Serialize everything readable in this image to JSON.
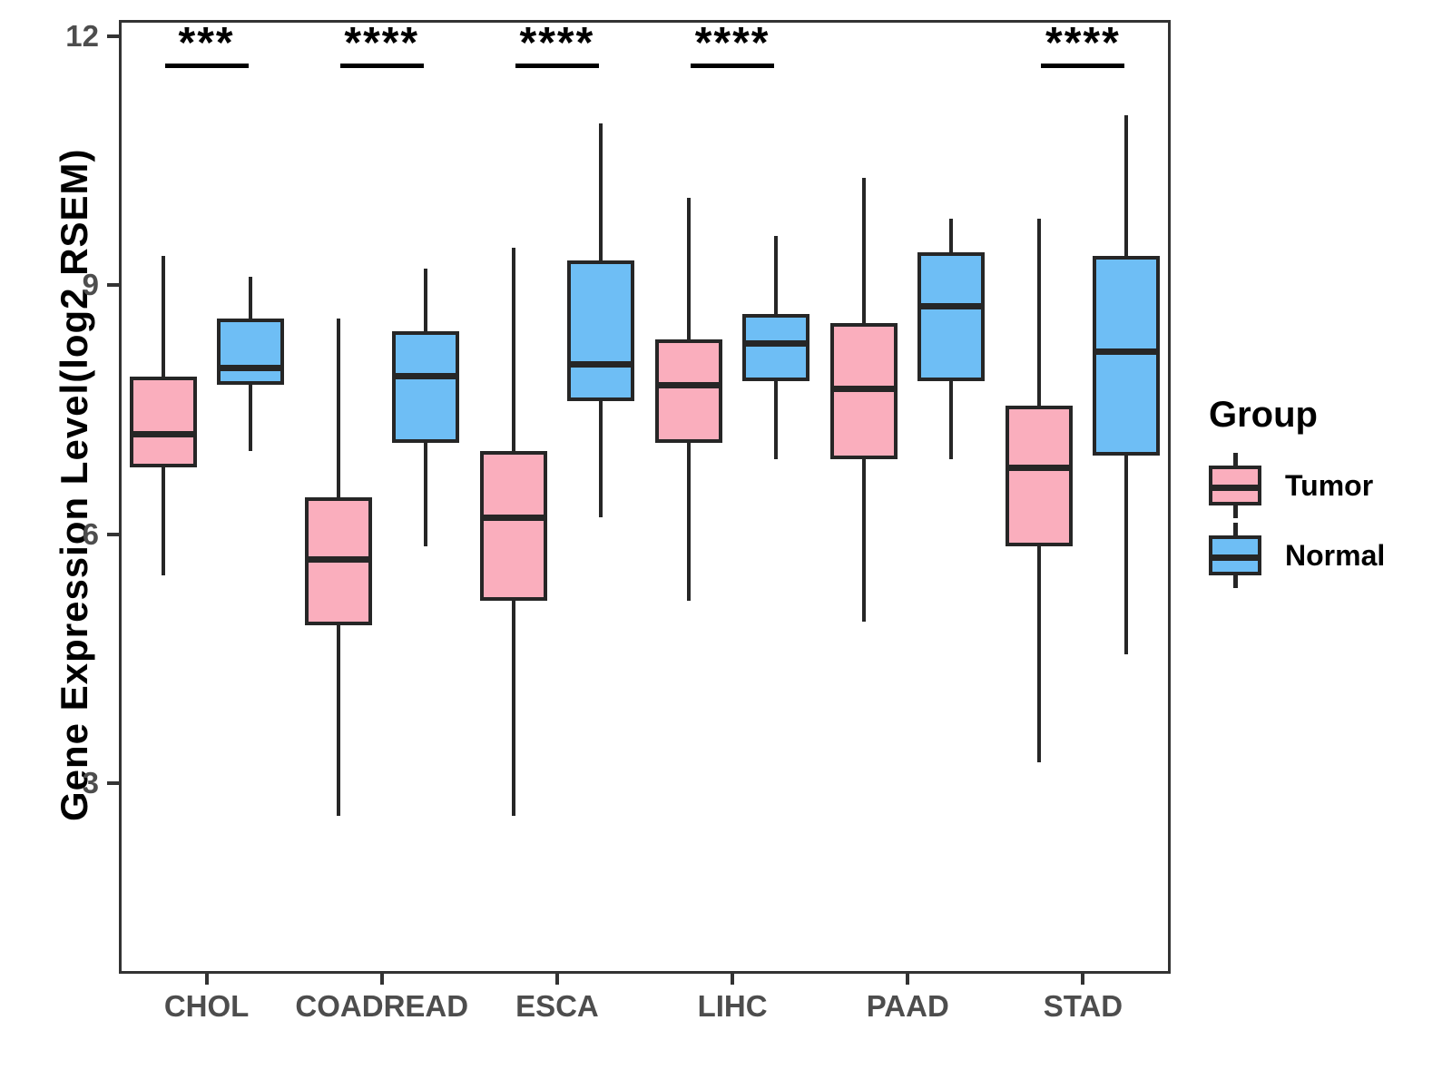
{
  "chart_data": {
    "type": "boxplot",
    "title": "",
    "xlabel": "",
    "ylabel": "Gene Expression Level(log2 RSEM)",
    "ylim": [
      0.7,
      12.2
    ],
    "yticks": [
      3,
      6,
      9,
      12
    ],
    "grid": false,
    "categories": [
      "CHOL",
      "COADREAD",
      "ESCA",
      "LIHC",
      "PAAD",
      "STAD"
    ],
    "significance": [
      "***",
      "****",
      "****",
      "****",
      "",
      "****"
    ],
    "legend": {
      "title": "Group",
      "position": "right",
      "entries": [
        {
          "label": "Tumor",
          "color": "#FAAEBD"
        },
        {
          "label": "Normal",
          "color": "#6EBEF5"
        }
      ]
    },
    "series": [
      {
        "name": "Tumor",
        "color": "#FAAEBD",
        "boxes": [
          {
            "category": "CHOL",
            "whisker_low": 5.5,
            "q1": 6.8,
            "median": 7.2,
            "q3": 7.9,
            "whisker_high": 9.35
          },
          {
            "category": "COADREAD",
            "whisker_low": 2.6,
            "q1": 4.9,
            "median": 5.7,
            "q3": 6.45,
            "whisker_high": 8.6
          },
          {
            "category": "ESCA",
            "whisker_low": 2.6,
            "q1": 5.2,
            "median": 6.2,
            "q3": 7.0,
            "whisker_high": 9.45
          },
          {
            "category": "LIHC",
            "whisker_low": 5.2,
            "q1": 7.1,
            "median": 7.8,
            "q3": 8.35,
            "whisker_high": 10.05
          },
          {
            "category": "PAAD",
            "whisker_low": 4.95,
            "q1": 6.9,
            "median": 7.75,
            "q3": 8.55,
            "whisker_high": 10.3
          },
          {
            "category": "STAD",
            "whisker_low": 3.25,
            "q1": 5.85,
            "median": 6.8,
            "q3": 7.55,
            "whisker_high": 9.8
          }
        ]
      },
      {
        "name": "Normal",
        "color": "#6EBEF5",
        "boxes": [
          {
            "category": "CHOL",
            "whisker_low": 7.0,
            "q1": 7.8,
            "median": 8.0,
            "q3": 8.6,
            "whisker_high": 9.1
          },
          {
            "category": "COADREAD",
            "whisker_low": 5.85,
            "q1": 7.1,
            "median": 7.9,
            "q3": 8.45,
            "whisker_high": 9.2
          },
          {
            "category": "ESCA",
            "whisker_low": 6.2,
            "q1": 7.6,
            "median": 8.05,
            "q3": 9.3,
            "whisker_high": 10.95
          },
          {
            "category": "LIHC",
            "whisker_low": 6.9,
            "q1": 7.85,
            "median": 8.3,
            "q3": 8.65,
            "whisker_high": 9.6
          },
          {
            "category": "PAAD",
            "whisker_low": 6.9,
            "q1": 7.85,
            "median": 8.75,
            "q3": 9.4,
            "whisker_high": 9.8
          },
          {
            "category": "STAD",
            "whisker_low": 4.55,
            "q1": 6.95,
            "median": 8.2,
            "q3": 9.35,
            "whisker_high": 11.05
          }
        ]
      }
    ]
  }
}
